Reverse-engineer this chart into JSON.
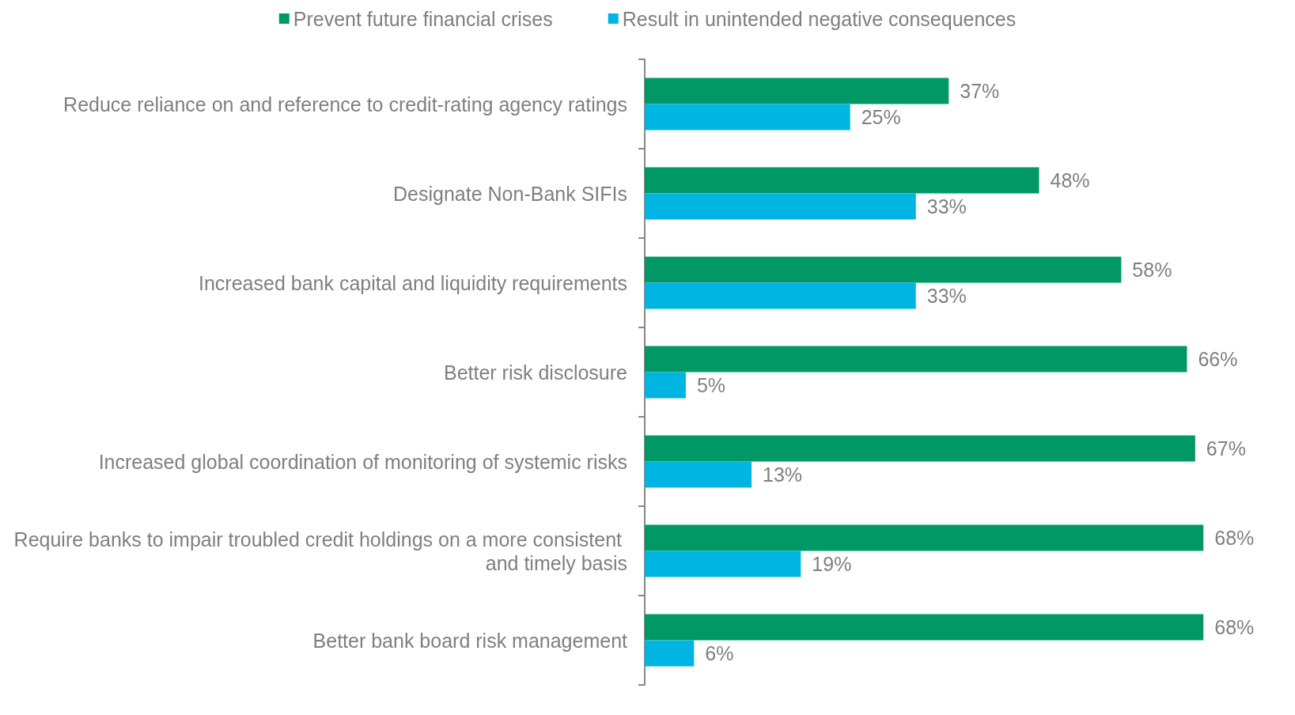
{
  "chart_data": {
    "type": "bar",
    "orientation": "horizontal",
    "legend": "top",
    "categories": [
      "Reduce reliance on and reference to credit-rating agency ratings",
      "Designate Non-Bank SIFIs",
      "Increased bank capital and liquidity requirements",
      "Better risk disclosure",
      "Increased global coordination of monitoring of systemic risks",
      "Require banks to impair troubled credit holdings on a more consistent and timely basis",
      "Better bank board risk management"
    ],
    "series": [
      {
        "name": "Prevent future financial crises",
        "color": "#009966",
        "values": [
          37,
          48,
          58,
          66,
          67,
          68,
          68
        ],
        "value_labels": [
          "37%",
          "48%",
          "58%",
          "66%",
          "67%",
          "68%",
          "68%"
        ]
      },
      {
        "name": "Result in unintended negative consequences",
        "color": "#00b5e2",
        "values": [
          25,
          33,
          33,
          5,
          13,
          19,
          6
        ],
        "value_labels": [
          "25%",
          "33%",
          "33%",
          "5%",
          "13%",
          "19%",
          "6%"
        ]
      }
    ]
  }
}
